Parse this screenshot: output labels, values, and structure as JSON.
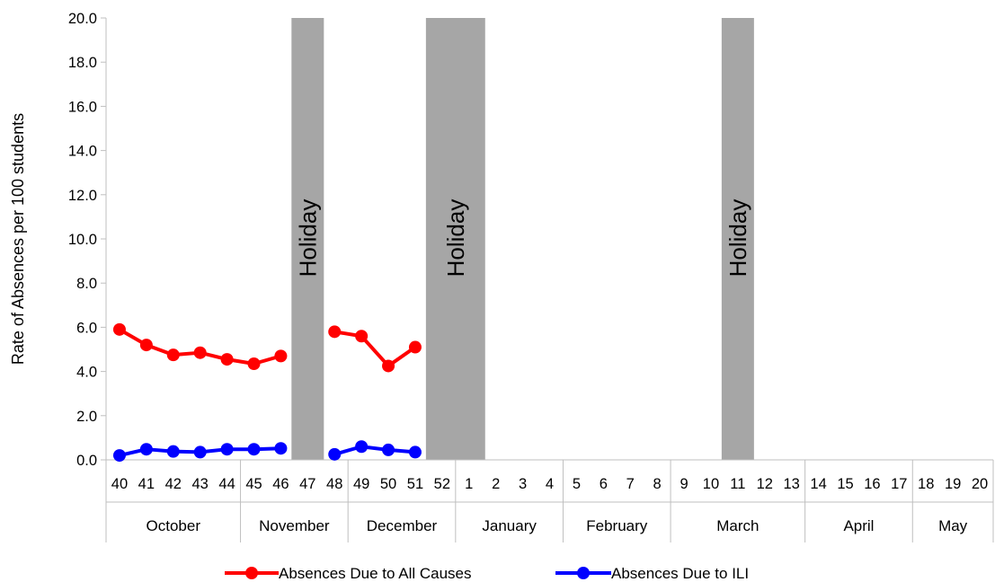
{
  "chart_data": {
    "type": "line",
    "title": "",
    "ylabel": "Rate of Absences per 100 students",
    "xlabel": "",
    "ylim": [
      0,
      20
    ],
    "yticks": [
      "0.0",
      "2.0",
      "4.0",
      "6.0",
      "8.0",
      "10.0",
      "12.0",
      "14.0",
      "16.0",
      "18.0",
      "20.0"
    ],
    "weeks": [
      "40",
      "41",
      "42",
      "43",
      "44",
      "45",
      "46",
      "47",
      "48",
      "49",
      "50",
      "51",
      "52",
      "1",
      "2",
      "3",
      "4",
      "5",
      "6",
      "7",
      "8",
      "9",
      "10",
      "11",
      "12",
      "13",
      "14",
      "15",
      "16",
      "17",
      "18",
      "19",
      "20"
    ],
    "months": [
      {
        "label": "October",
        "weeks": 5
      },
      {
        "label": "November",
        "weeks": 4
      },
      {
        "label": "December",
        "weeks": 4
      },
      {
        "label": "January",
        "weeks": 4
      },
      {
        "label": "February",
        "weeks": 4
      },
      {
        "label": "March",
        "weeks": 5
      },
      {
        "label": "April",
        "weeks": 4
      },
      {
        "label": "May",
        "weeks": 3
      }
    ],
    "holidays": [
      {
        "week": "47",
        "label": "Holiday"
      },
      {
        "week": "52",
        "label": "Holiday",
        "through_week": "1"
      },
      {
        "week": "11",
        "label": "Holiday"
      }
    ],
    "series": [
      {
        "name": "Absences Due to All Causes",
        "color": "#ff0000",
        "values": [
          5.9,
          5.2,
          4.75,
          4.85,
          4.55,
          4.35,
          4.7,
          null,
          5.8,
          5.6,
          4.25,
          5.1,
          null,
          null,
          null,
          null,
          null,
          null,
          null,
          null,
          null,
          null,
          null,
          null,
          null,
          null,
          null,
          null,
          null,
          null,
          null,
          null,
          null
        ]
      },
      {
        "name": "Absences Due to ILI",
        "color": "#0000ff",
        "values": [
          0.2,
          0.48,
          0.38,
          0.35,
          0.48,
          0.48,
          0.52,
          null,
          0.25,
          0.6,
          0.45,
          0.35,
          null,
          null,
          null,
          null,
          null,
          null,
          null,
          null,
          null,
          null,
          null,
          null,
          null,
          null,
          null,
          null,
          null,
          null,
          null,
          null,
          null
        ]
      }
    ],
    "legend_position": "bottom"
  }
}
